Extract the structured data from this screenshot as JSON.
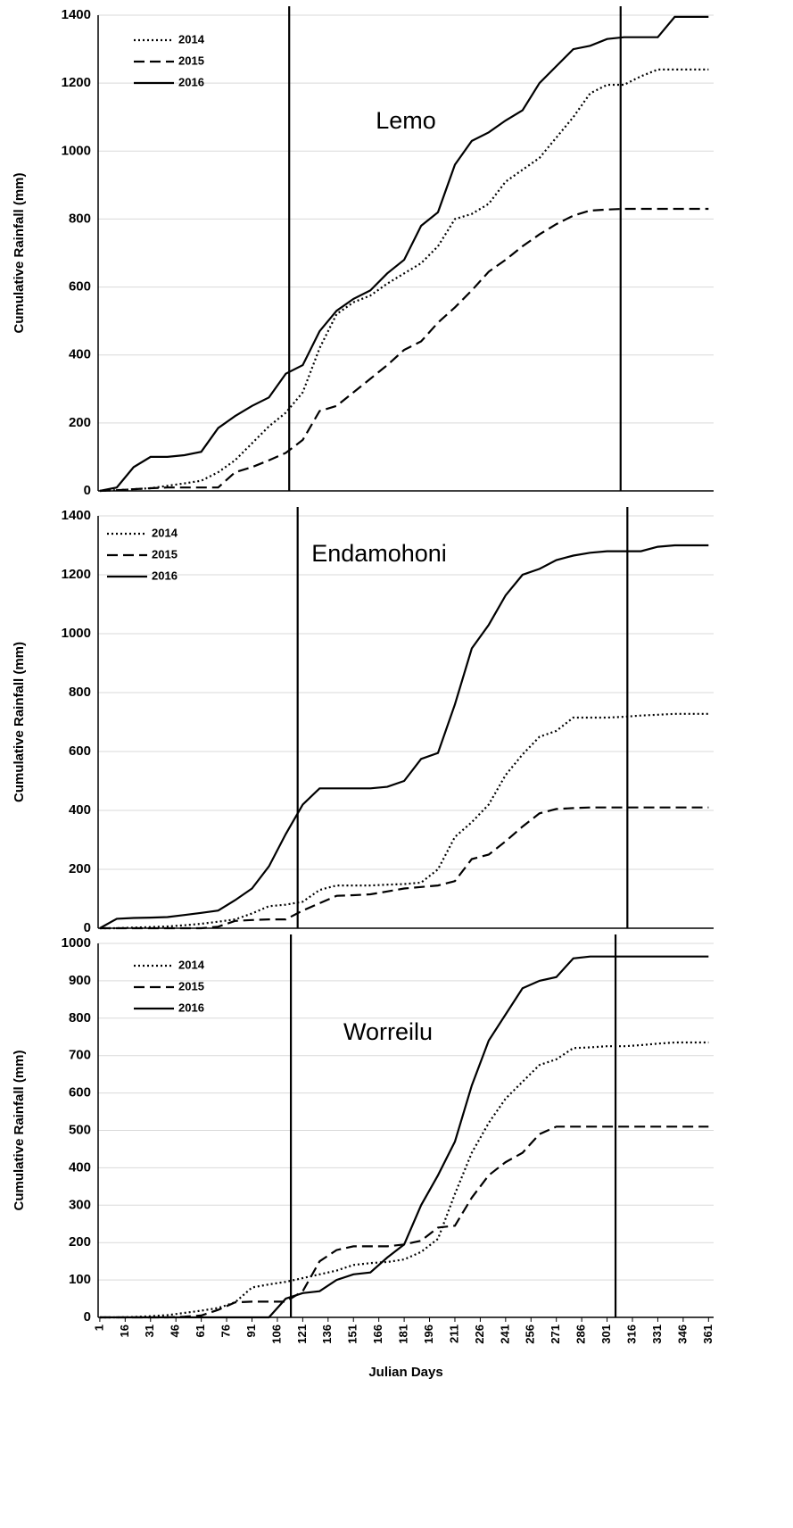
{
  "chart_data": [
    {
      "type": "line",
      "annotation": "Lemo",
      "ylabel": "Cumulative Rainfall (mm)",
      "legend": "upper left",
      "xlim": [
        0,
        364
      ],
      "ylim": [
        0,
        1400
      ],
      "yticks": [
        0,
        200,
        400,
        600,
        800,
        1000,
        1200,
        1400
      ],
      "grid": true,
      "vlines": [
        113,
        309
      ],
      "x": [
        1,
        11,
        21,
        31,
        41,
        51,
        61,
        71,
        81,
        91,
        101,
        111,
        121,
        131,
        141,
        151,
        161,
        171,
        181,
        191,
        201,
        211,
        221,
        231,
        241,
        251,
        261,
        271,
        281,
        291,
        301,
        311,
        321,
        331,
        341,
        351,
        361
      ],
      "series": [
        {
          "name": "2014",
          "color": "#000000",
          "style": "dotted",
          "values": [
            0,
            2,
            5,
            8,
            15,
            22,
            30,
            55,
            90,
            140,
            190,
            230,
            290,
            420,
            520,
            555,
            575,
            610,
            640,
            670,
            720,
            800,
            815,
            845,
            910,
            945,
            980,
            1040,
            1100,
            1170,
            1195,
            1195,
            1220,
            1240,
            1240,
            1240,
            1240
          ]
        },
        {
          "name": "2015",
          "color": "#000000",
          "style": "dashed",
          "values": [
            0,
            2,
            5,
            8,
            10,
            10,
            10,
            10,
            55,
            70,
            90,
            112,
            150,
            235,
            250,
            290,
            330,
            370,
            415,
            440,
            495,
            540,
            590,
            645,
            680,
            720,
            755,
            785,
            810,
            825,
            828,
            830,
            830,
            830,
            830,
            830,
            830
          ]
        },
        {
          "name": "2016",
          "color": "#000000",
          "style": "solid",
          "values": [
            0,
            10,
            70,
            100,
            100,
            105,
            115,
            185,
            220,
            250,
            275,
            345,
            370,
            470,
            530,
            565,
            590,
            640,
            680,
            780,
            820,
            960,
            1030,
            1055,
            1090,
            1120,
            1200,
            1250,
            1300,
            1310,
            1330,
            1335,
            1335,
            1335,
            1395,
            1395,
            1395
          ]
        }
      ]
    },
    {
      "type": "line",
      "annotation": "Endamohoni",
      "ylabel": "Cumulative Rainfall (mm)",
      "legend": "upper left",
      "xlim": [
        0,
        364
      ],
      "ylim": [
        0,
        1400
      ],
      "yticks": [
        0,
        200,
        400,
        600,
        800,
        1000,
        1200,
        1400
      ],
      "grid": true,
      "vlines": [
        118,
        313
      ],
      "x": [
        1,
        11,
        21,
        31,
        41,
        51,
        61,
        71,
        81,
        91,
        101,
        111,
        121,
        131,
        141,
        151,
        161,
        171,
        181,
        191,
        201,
        211,
        221,
        231,
        241,
        251,
        261,
        271,
        281,
        291,
        301,
        311,
        321,
        331,
        341,
        351,
        361
      ],
      "series": [
        {
          "name": "2014",
          "color": "#000000",
          "style": "dotted",
          "values": [
            0,
            0,
            2,
            4,
            6,
            10,
            15,
            22,
            30,
            50,
            75,
            80,
            90,
            130,
            145,
            145,
            145,
            148,
            150,
            155,
            200,
            310,
            360,
            420,
            520,
            590,
            650,
            670,
            715,
            715,
            715,
            718,
            722,
            725,
            728,
            728,
            728
          ]
        },
        {
          "name": "2015",
          "color": "#000000",
          "style": "dashed",
          "values": [
            0,
            0,
            0,
            0,
            0,
            0,
            0,
            5,
            25,
            28,
            30,
            30,
            60,
            85,
            110,
            112,
            115,
            125,
            135,
            140,
            145,
            160,
            235,
            250,
            295,
            345,
            390,
            405,
            408,
            410,
            410,
            410,
            410,
            410,
            410,
            410,
            410
          ]
        },
        {
          "name": "2016",
          "color": "#000000",
          "style": "solid",
          "values": [
            0,
            32,
            35,
            36,
            38,
            45,
            52,
            60,
            95,
            135,
            210,
            320,
            420,
            475,
            475,
            475,
            475,
            480,
            500,
            575,
            595,
            760,
            950,
            1030,
            1130,
            1200,
            1220,
            1250,
            1265,
            1275,
            1280,
            1280,
            1280,
            1295,
            1300,
            1300,
            1300
          ]
        }
      ]
    },
    {
      "type": "line",
      "annotation": "Worreilu",
      "ylabel": "Cumulative Rainfall (mm)",
      "xlabel": "Julian Days",
      "legend": "upper left",
      "xlim": [
        0,
        364
      ],
      "ylim": [
        0,
        1000
      ],
      "yticks": [
        0,
        100,
        200,
        300,
        400,
        500,
        600,
        700,
        800,
        900,
        1000
      ],
      "grid": true,
      "xticks": [
        1,
        16,
        31,
        46,
        61,
        76,
        91,
        106,
        121,
        136,
        151,
        166,
        181,
        196,
        211,
        226,
        241,
        256,
        271,
        286,
        301,
        316,
        331,
        346,
        361
      ],
      "vlines": [
        114,
        306
      ],
      "x": [
        1,
        11,
        21,
        31,
        41,
        51,
        61,
        71,
        81,
        91,
        101,
        111,
        121,
        131,
        141,
        151,
        161,
        171,
        181,
        191,
        201,
        211,
        221,
        231,
        241,
        251,
        261,
        271,
        281,
        291,
        301,
        311,
        321,
        331,
        341,
        351,
        361
      ],
      "series": [
        {
          "name": "2014",
          "color": "#000000",
          "style": "dotted",
          "values": [
            0,
            0,
            1,
            3,
            6,
            12,
            18,
            25,
            40,
            80,
            88,
            95,
            105,
            115,
            125,
            140,
            145,
            148,
            155,
            175,
            210,
            330,
            440,
            520,
            585,
            630,
            675,
            690,
            720,
            722,
            725,
            725,
            728,
            732,
            735,
            735,
            735
          ]
        },
        {
          "name": "2015",
          "color": "#000000",
          "style": "dashed",
          "values": [
            0,
            0,
            0,
            0,
            0,
            2,
            5,
            20,
            40,
            42,
            42,
            42,
            70,
            150,
            180,
            190,
            190,
            190,
            195,
            205,
            240,
            245,
            320,
            380,
            415,
            440,
            490,
            510,
            510,
            510,
            510,
            510,
            510,
            510,
            510,
            510,
            510
          ]
        },
        {
          "name": "2016",
          "color": "#000000",
          "style": "solid",
          "values": [
            0,
            0,
            0,
            0,
            0,
            0,
            0,
            0,
            0,
            0,
            0,
            50,
            65,
            70,
            100,
            115,
            120,
            160,
            195,
            300,
            380,
            470,
            620,
            740,
            810,
            880,
            900,
            910,
            960,
            965,
            965,
            965,
            965,
            965,
            965,
            965,
            965
          ]
        }
      ]
    }
  ]
}
